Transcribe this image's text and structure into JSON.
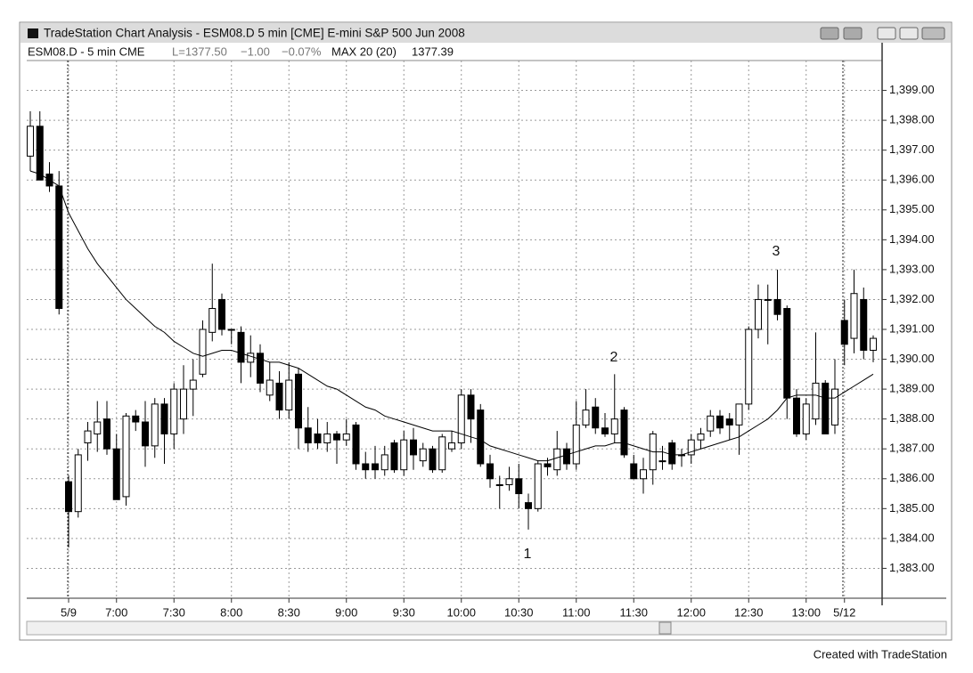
{
  "window": {
    "title": "TradeStation Chart Analysis - ESM08.D 5 min [CME] E-mini S&P 500 Jun 2008",
    "symbol": "ESM08.D - 5 min CME",
    "last": "L=1377.50",
    "change": "−1.00",
    "change_pct": "−0.07%",
    "study_last": "1377.39"
  },
  "footer": "Created with TradeStation",
  "chart_data": {
    "type": "candlestick",
    "categories": [
      null,
      null,
      null,
      null,
      "5/9",
      null,
      null,
      null,
      null,
      "7:00",
      null,
      null,
      null,
      null,
      null,
      "7:30",
      null,
      null,
      null,
      null,
      null,
      "8:00",
      null,
      null,
      null,
      null,
      null,
      "8:30",
      null,
      null,
      null,
      null,
      null,
      "9:00",
      null,
      null,
      null,
      null,
      null,
      "9:30",
      null,
      null,
      null,
      null,
      null,
      "10:00",
      null,
      null,
      null,
      null,
      null,
      "10:30",
      null,
      null,
      null,
      null,
      null,
      "11:00",
      null,
      null,
      null,
      null,
      null,
      "11:30",
      null,
      null,
      null,
      null,
      null,
      "12:00",
      null,
      null,
      null,
      null,
      null,
      "12:30",
      null,
      null,
      null,
      null,
      null,
      "13:00",
      null,
      null,
      null,
      "5/12",
      null,
      null,
      null
    ],
    "open": [
      1396.8,
      1397.8,
      1396.2,
      1395.8,
      1385.9,
      1384.9,
      1387.2,
      1387.5,
      1388.0,
      1387.0,
      1385.4,
      1388.1,
      1387.9,
      1387.1,
      1388.5,
      1387.5,
      1388.0,
      1389.0,
      1389.5,
      1390.9,
      1392.0,
      1391.0,
      1390.9,
      1389.9,
      1390.2,
      1388.8,
      1389.2,
      1388.3,
      1389.5,
      1387.7,
      1387.5,
      1387.2,
      1387.5,
      1387.3,
      1387.8,
      1386.5,
      1386.5,
      1386.3,
      1387.2,
      1386.3,
      1387.3,
      1386.6,
      1387.0,
      1386.3,
      1387.0,
      1387.2,
      1388.8,
      1388.3,
      1386.5,
      1385.8,
      1385.8,
      1386.0,
      1385.2,
      1385.0,
      1386.5,
      1386.3,
      1387.0,
      1386.5,
      1387.8,
      1388.4,
      1387.7,
      1387.5,
      1388.3,
      1386.5,
      1386.0,
      1386.3,
      1386.6,
      1387.2,
      1386.8,
      1386.8,
      1387.3,
      1387.6,
      1388.1,
      1388.0,
      1387.8,
      1388.5,
      1391.0,
      1392.0,
      1392.0,
      1391.7,
      1388.7,
      1387.5,
      1388.0,
      1389.2,
      1387.8,
      1391.3,
      1390.7,
      1392.0,
      1390.3
    ],
    "high": [
      1398.3,
      1398.3,
      1396.6,
      1396.3,
      1386.1,
      1387.0,
      1387.9,
      1388.6,
      1388.6,
      1387.5,
      1388.2,
      1388.3,
      1388.6,
      1388.7,
      1388.7,
      1389.2,
      1389.8,
      1390.0,
      1391.3,
      1393.2,
      1392.2,
      1391.0,
      1391.1,
      1390.8,
      1390.5,
      1389.9,
      1389.6,
      1389.9,
      1389.7,
      1388.4,
      1388.0,
      1387.9,
      1387.6,
      1388.0,
      1387.9,
      1386.9,
      1387.1,
      1387.1,
      1387.3,
      1387.6,
      1387.7,
      1387.2,
      1387.1,
      1387.5,
      1387.6,
      1389.0,
      1389.0,
      1388.5,
      1386.8,
      1386.1,
      1386.4,
      1386.5,
      1385.5,
      1386.6,
      1386.7,
      1387.6,
      1387.2,
      1388.6,
      1389.0,
      1388.7,
      1388.2,
      1389.5,
      1388.4,
      1386.8,
      1386.7,
      1387.6,
      1387.1,
      1387.3,
      1387.0,
      1387.5,
      1387.7,
      1388.3,
      1388.3,
      1388.2,
      1388.5,
      1391.1,
      1392.5,
      1392.5,
      1393.0,
      1391.8,
      1389.0,
      1388.7,
      1390.9,
      1389.3,
      1390.0,
      1392.0,
      1393.0,
      1392.4,
      1390.8
    ],
    "low": [
      1396.3,
      1396.0,
      1395.6,
      1391.5,
      1383.7,
      1384.7,
      1386.6,
      1386.9,
      1386.8,
      1385.3,
      1385.1,
      1387.6,
      1386.4,
      1386.7,
      1386.5,
      1387.0,
      1387.5,
      1388.1,
      1389.4,
      1390.6,
      1390.8,
      1390.5,
      1389.2,
      1389.4,
      1388.9,
      1388.6,
      1388.0,
      1388.0,
      1387.0,
      1386.9,
      1387.0,
      1386.9,
      1386.5,
      1387.1,
      1386.3,
      1386.0,
      1386.0,
      1386.1,
      1386.2,
      1386.1,
      1386.3,
      1386.4,
      1386.2,
      1386.2,
      1386.9,
      1387.0,
      1387.2,
      1386.4,
      1385.7,
      1385.0,
      1385.6,
      1385.0,
      1384.3,
      1384.9,
      1386.1,
      1386.1,
      1386.3,
      1386.3,
      1387.7,
      1387.5,
      1387.4,
      1387.2,
      1386.7,
      1386.0,
      1385.5,
      1385.8,
      1386.3,
      1386.3,
      1386.4,
      1386.5,
      1387.0,
      1387.4,
      1387.5,
      1387.3,
      1386.8,
      1388.3,
      1390.7,
      1390.5,
      1391.3,
      1388.0,
      1387.4,
      1387.3,
      1387.8,
      1387.5,
      1387.5,
      1389.8,
      1390.2,
      1390.0,
      1389.9
    ],
    "close": [
      1397.8,
      1396.0,
      1395.8,
      1391.7,
      1384.9,
      1386.8,
      1387.6,
      1387.9,
      1387.0,
      1385.3,
      1388.1,
      1387.9,
      1387.1,
      1388.5,
      1387.5,
      1389.0,
      1389.0,
      1389.3,
      1391.0,
      1391.7,
      1391.0,
      1391.0,
      1389.9,
      1390.2,
      1389.2,
      1389.3,
      1388.3,
      1389.3,
      1387.7,
      1387.2,
      1387.2,
      1387.5,
      1387.3,
      1387.5,
      1386.5,
      1386.3,
      1386.3,
      1386.8,
      1386.3,
      1387.3,
      1386.8,
      1387.0,
      1386.3,
      1387.4,
      1387.2,
      1388.8,
      1388.0,
      1386.5,
      1386.0,
      1385.8,
      1386.0,
      1385.5,
      1385.0,
      1386.5,
      1386.4,
      1387.0,
      1386.5,
      1387.8,
      1388.3,
      1387.7,
      1387.5,
      1388.0,
      1386.8,
      1386.0,
      1386.3,
      1387.5,
      1386.6,
      1386.5,
      1386.8,
      1387.3,
      1387.5,
      1388.1,
      1387.7,
      1387.8,
      1388.5,
      1391.0,
      1392.0,
      1392.0,
      1391.5,
      1388.7,
      1387.5,
      1388.5,
      1389.2,
      1387.5,
      1389.0,
      1390.5,
      1392.2,
      1390.3,
      1390.7
    ],
    "up_color": "#ffffff",
    "down_color": "#000000",
    "ma": {
      "name": "MAX 20 (20)",
      "color": "#000000",
      "values": [
        1396.3,
        1396.2,
        1396.0,
        1395.8,
        1394.9,
        1394.3,
        1393.7,
        1393.2,
        1392.8,
        1392.4,
        1392.0,
        1391.7,
        1391.4,
        1391.1,
        1390.9,
        1390.6,
        1390.4,
        1390.2,
        1390.1,
        1390.2,
        1390.3,
        1390.3,
        1390.2,
        1390.1,
        1390.0,
        1389.9,
        1389.9,
        1389.8,
        1389.7,
        1389.5,
        1389.3,
        1389.1,
        1389.0,
        1388.8,
        1388.6,
        1388.4,
        1388.3,
        1388.1,
        1388.0,
        1387.9,
        1387.8,
        1387.7,
        1387.6,
        1387.6,
        1387.6,
        1387.5,
        1387.4,
        1387.3,
        1387.1,
        1387.0,
        1386.9,
        1386.8,
        1386.7,
        1386.6,
        1386.6,
        1386.7,
        1386.8,
        1386.9,
        1387.0,
        1387.1,
        1387.1,
        1387.2,
        1387.2,
        1387.1,
        1387.0,
        1386.9,
        1386.9,
        1386.8,
        1386.8,
        1386.9,
        1387.0,
        1387.1,
        1387.2,
        1387.3,
        1387.4,
        1387.6,
        1387.8,
        1388.0,
        1388.3,
        1388.7,
        1388.8,
        1388.8,
        1388.8,
        1388.7,
        1388.7,
        1388.9,
        1389.1,
        1389.3,
        1389.5
      ]
    },
    "annotations": [
      "1",
      "2",
      "3"
    ],
    "ylim": [
      1382,
      1400
    ],
    "yticks": [
      {
        "value": 1383,
        "label": "1,383.00"
      },
      {
        "value": 1384,
        "label": "1,384.00"
      },
      {
        "value": 1385,
        "label": "1,385.00"
      },
      {
        "value": 1386,
        "label": "1,386.00"
      },
      {
        "value": 1387,
        "label": "1,387.00"
      },
      {
        "value": 1388,
        "label": "1,388.00"
      },
      {
        "value": 1389,
        "label": "1,389.00"
      },
      {
        "value": 1390,
        "label": "1,390.00"
      },
      {
        "value": 1391,
        "label": "1,391.00"
      },
      {
        "value": 1392,
        "label": "1,392.00"
      },
      {
        "value": 1393,
        "label": "1,393.00"
      },
      {
        "value": 1394,
        "label": "1,394.00"
      },
      {
        "value": 1395,
        "label": "1,395.00"
      },
      {
        "value": 1396,
        "label": "1,396.00"
      },
      {
        "value": 1397,
        "label": "1,397.00"
      },
      {
        "value": 1398,
        "label": "1,398.00"
      },
      {
        "value": 1399,
        "label": "1,399.00"
      }
    ],
    "grid": true
  }
}
